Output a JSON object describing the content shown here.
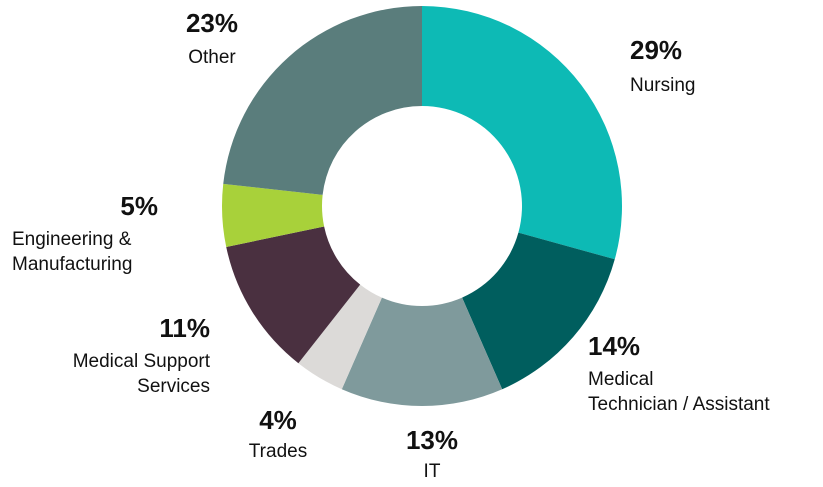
{
  "chart_data": {
    "type": "donut",
    "categories": [
      [
        "Nursing"
      ],
      [
        "Medical",
        "Technician / Assistant"
      ],
      [
        "IT"
      ],
      [
        "Trades"
      ],
      [
        "Medical Support",
        "Services"
      ],
      [
        "Engineering &",
        "Manufacturing"
      ],
      [
        "Other"
      ]
    ],
    "values": [
      29,
      14,
      13,
      4,
      11,
      5,
      23
    ],
    "value_labels": [
      "29%",
      "14%",
      "13%",
      "4%",
      "11%",
      "5%",
      "23%"
    ],
    "colors": [
      "#0dbab5",
      "#005e5e",
      "#7f9a9c",
      "#dcdad8",
      "#4a3040",
      "#a8d13a",
      "#5a7d7c"
    ]
  }
}
